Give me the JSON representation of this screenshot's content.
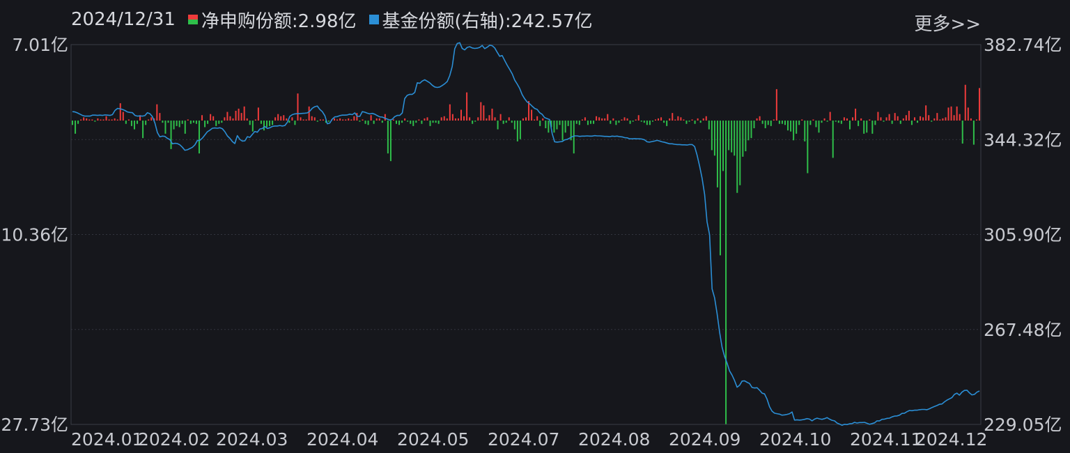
{
  "legend": {
    "date": "2024/12/31",
    "net_label": "净申购份额:",
    "net_value": "2.98亿",
    "share_label": "基金份额(右轴):",
    "share_value": "242.57亿"
  },
  "more_label": "更多>>",
  "chart_data": {
    "type": "bar+line",
    "left_axis": {
      "ticks": [
        "7.01亿",
        "10.36亿",
        "27.73亿"
      ],
      "top_value": 7.01,
      "zero_fraction": 0.2,
      "bottom_value": -27.73
    },
    "right_axis": {
      "ticks": [
        "382.74亿",
        "344.32亿",
        "305.90亿",
        "267.48亿",
        "229.05亿"
      ],
      "max": 382.74,
      "min": 229.05
    },
    "x_ticks": [
      "2024.01",
      "2024.02",
      "2024.03",
      "2024.04",
      "2024.05",
      "2024.07",
      "2024.08",
      "2024.09",
      "2024.10",
      "2024.11",
      "2024.12"
    ],
    "colors": {
      "positive": "#ef3b3b",
      "negative": "#2fbf4a",
      "line": "#2b8fd6"
    },
    "series": [
      {
        "name": "净申购份额",
        "unit": "亿",
        "values": [
          -0.4,
          -1.2,
          -0.3,
          0.1,
          0.3,
          0.2,
          0.1,
          0.1,
          -0.1,
          0.2,
          0.1,
          0.1,
          0.4,
          0.1,
          0.1,
          0.2,
          0.1,
          1.6,
          0.8,
          -0.3,
          0.1,
          -0.5,
          -0.8,
          -0.3,
          0.5,
          -1.6,
          -0.4,
          0.1,
          0.3,
          0.2,
          1.5,
          0.7,
          -0.2,
          -1.2,
          -0.2,
          -2.6,
          -0.8,
          -0.5,
          -0.6,
          -0.3,
          -1.2,
          0.1,
          -0.3,
          -0.2,
          -0.3,
          -3.0,
          0.5,
          -0.6,
          -0.3,
          0.6,
          0.4,
          -0.5,
          -0.3,
          -0.2,
          0.3,
          0.8,
          0.4,
          0.2,
          0.9,
          1.1,
          0.7,
          1.3,
          0.2,
          -0.4,
          -1.0,
          0.1,
          1.2,
          -0.3,
          -0.9,
          -0.6,
          -0.5,
          -0.4,
          0.3,
          0.6,
          0.4,
          0.5,
          0.2,
          -0.2,
          0.3,
          -0.4,
          2.5,
          0.3,
          0.1,
          0.1,
          1.3,
          0.4,
          0.3,
          -0.1,
          0.1,
          0.1,
          -0.2,
          -0.1,
          0.1,
          0.2,
          0.1,
          0.2,
          0.1,
          0.1,
          0.2,
          0.1,
          0.4,
          0.7,
          -0.1,
          0.1,
          -0.3,
          -0.4,
          0.5,
          -0.3,
          0.2,
          0.2,
          -0.2,
          0.6,
          -3.0,
          -3.7,
          0.1,
          -0.3,
          -0.4,
          -0.2,
          0.2,
          -0.1,
          -0.3,
          -0.5,
          -0.2,
          0.1,
          -0.3,
          0.2,
          0.3,
          -0.5,
          -0.2,
          -0.2,
          -0.3,
          0.3,
          0.4,
          0.2,
          1.5,
          0.6,
          0.2,
          0.2,
          1.0,
          0.4,
          2.6,
          0.3,
          -0.3,
          -0.1,
          0.3,
          1.7,
          1.4,
          0.2,
          0.5,
          1.1,
          0.3,
          -0.8,
          0.6,
          -0.3,
          -0.2,
          0.3,
          -0.2,
          -0.8,
          -1.9,
          -1.7,
          0.2,
          0.3,
          1.8,
          1.0,
          0.1,
          0.4,
          -0.5,
          0.2,
          -0.7,
          -1.1,
          -0.6,
          -1.1,
          -0.8,
          -0.4,
          -1.8,
          -1.1,
          -0.5,
          -1.8,
          -3.0,
          -0.3,
          -0.4,
          0.1,
          0.3,
          -0.4,
          -0.3,
          -0.3,
          0.4,
          0.3,
          0.2,
          0.2,
          0.6,
          -0.3,
          0.2,
          -0.4,
          -0.2,
          0.1,
          0.3,
          0.2,
          -0.3,
          -0.1,
          0.1,
          0.5,
          -0.1,
          -0.2,
          -0.4,
          -0.4,
          -0.1,
          0.1,
          0.2,
          0.3,
          -0.2,
          -0.5,
          0.2,
          0.7,
          0.1,
          0.4,
          0.3,
          0.1,
          -0.3,
          -0.1,
          0.1,
          -0.3,
          0.2,
          -0.2,
          0.2,
          0.4,
          -0.8,
          -2.7,
          -3.2,
          -6.1,
          -12.3,
          -4.6,
          -27.7,
          -2.7,
          -2.9,
          -3.2,
          -6.6,
          -5.9,
          -3.3,
          -2.8,
          -1.8,
          -1.6,
          -0.7,
          0.2,
          0.4,
          -0.3,
          -0.7,
          -0.4,
          -0.5,
          0.1,
          2.9,
          -0.3,
          -0.3,
          -0.4,
          -0.9,
          -1.0,
          -1.8,
          -1.2,
          -0.4,
          0.1,
          -1.9,
          -4.8,
          -0.4,
          0.1,
          -0.6,
          -1.1,
          -0.2,
          0.2,
          -0.1,
          0.8,
          -3.4,
          -0.1,
          -0.2,
          -0.3,
          0.3,
          0.2,
          -0.8,
          0.3,
          1.1,
          -0.5,
          0.2,
          -1.2,
          -1.1,
          0.1,
          -1.2,
          -0.4,
          0.8,
          0.3,
          -0.1,
          0.3,
          0.6,
          -0.3,
          0.7,
          0.4,
          -0.3,
          0.2,
          0.5,
          0.9,
          -0.4,
          0.3,
          -0.2,
          0.4,
          0.3,
          1.4,
          0.5,
          -0.1,
          0.2,
          0.7,
          0.1,
          0.2,
          0.3,
          1.2,
          1.3,
          0.5,
          1.3,
          0.6,
          -2.1,
          3.3,
          1.2,
          0.2,
          -2.2,
          0.1,
          3.0
        ]
      },
      {
        "name": "基金份额",
        "unit": "亿",
        "axis": "right",
        "x_range": [
          "2024-01-02",
          "2024-12-31"
        ],
        "values": [
          355.6,
          355.5,
          355.1,
          354.6,
          354.1,
          353.8,
          353.8,
          353.8,
          354.2,
          354.2,
          354.1,
          354.2,
          354.1,
          354.3,
          354.2,
          354.1,
          354.4,
          356.1,
          356.9,
          356.8,
          356.5,
          356.1,
          355.5,
          355.3,
          355.2,
          354.1,
          353.8,
          353.9,
          353.8,
          354.0,
          355.2,
          354.8,
          353.6,
          351.0,
          347.1,
          345.4,
          345.7,
          345.6,
          344.8,
          344.3,
          342.6,
          342.8,
          342.7,
          342.2,
          341.2,
          340.0,
          340.2,
          340.7,
          341.2,
          342.2,
          343.9,
          344.0,
          344.9,
          346.2,
          347.5,
          348.1,
          348.9,
          349.0,
          348.9,
          349.1,
          348.7,
          347.5,
          345.8,
          344.8,
          343.5,
          342.7,
          345.9,
          344.4,
          343.7,
          343.8,
          345.5,
          345.2,
          346.4,
          347.6,
          347.3,
          348.6,
          348.8,
          349.6,
          348.8,
          349.1,
          349.6,
          349.8,
          349.8,
          350.0,
          349.8,
          350.0,
          351.3,
          353.7,
          354.4,
          354.7,
          354.8,
          354.8,
          354.9,
          355.0,
          355.1,
          355.8,
          357.0,
          357.6,
          357.9,
          356.5,
          355.6,
          354.0,
          350.7,
          351.0,
          352.6,
          353.5,
          353.6,
          354.0,
          354.2,
          354.2,
          354.3,
          354.6,
          354.4,
          355.1,
          353.7,
          353.7,
          355.6,
          355.4,
          355.0,
          354.7,
          354.9,
          354.6,
          354.0,
          353.5,
          353.4,
          353.0,
          352.6,
          352.2,
          352.5,
          353.6,
          354.1,
          354.1,
          355.1,
          360.9,
          362.2,
          362.6,
          362.6,
          363.4,
          367.3,
          367.1,
          368.0,
          368.5,
          367.9,
          367.3,
          366.3,
          365.6,
          365.4,
          365.6,
          366.2,
          366.9,
          367.8,
          370.2,
          373.9,
          381.1,
          383.2,
          383.5,
          381.2,
          380.6,
          381.6,
          381.9,
          381.4,
          381.2,
          381.3,
          381.6,
          382.4,
          381.1,
          381.7,
          382.5,
          382.3,
          381.4,
          379.6,
          378.0,
          378.3,
          376.3,
          374.4,
          372.7,
          370.9,
          368.4,
          366.8,
          365.0,
          362.5,
          360.8,
          359.5,
          358.8,
          357.8,
          356.9,
          356.5,
          355.2,
          354.5,
          353.2,
          352.8,
          352.4,
          346.7,
          343.4,
          343.3,
          343.4,
          343.5,
          344.2,
          344.4,
          344.9,
          345.5,
          345.8,
          345.8,
          345.6,
          345.7,
          345.7,
          345.8,
          345.7,
          345.7,
          345.9,
          345.8,
          345.8,
          345.7,
          345.6,
          345.6,
          345.5,
          345.7,
          345.6,
          345.7,
          345.5,
          345.4,
          345.1,
          345.0,
          344.6,
          344.6,
          344.7,
          344.6,
          344.6,
          344.5,
          344.2,
          343.4,
          343.3,
          343.5,
          343.7,
          344.0,
          343.7,
          343.4,
          343.2,
          342.9,
          342.6,
          342.6,
          342.4,
          342.3,
          342.3,
          342.2,
          342.2,
          342.1,
          342.3,
          342.3,
          341.5,
          338.0,
          333.6,
          328.6,
          322.1,
          311.0,
          305.8,
          283.9,
          280.3,
          273.9,
          266.4,
          260.2,
          256.6,
          253.9,
          250.7,
          249.0,
          246.8,
          244.1,
          244.9,
          246.6,
          246.7,
          246.1,
          245.6,
          244.0,
          243.8,
          243.9,
          242.9,
          241.7,
          241.4,
          239.3,
          236.2,
          234.4,
          233.6,
          233.4,
          233.2,
          232.8,
          232.9,
          233.1,
          233.4,
          234.1,
          230.8,
          230.9,
          230.8,
          230.9,
          231.1,
          231.4,
          231.2,
          230.5,
          231.2,
          231.6,
          231.3,
          231.1,
          231.4,
          231.8,
          231.2,
          230.7,
          230.5,
          229.6,
          229.2,
          228.7,
          229.1,
          229.0,
          229.3,
          229.4,
          229.9,
          229.6,
          229.8,
          229.8,
          229.9,
          229.5,
          229.1,
          229.4,
          229.7,
          230.5,
          230.5,
          231.1,
          231.2,
          231.5,
          231.6,
          232.1,
          232.4,
          232.5,
          232.8,
          233.5,
          233.6,
          234.2,
          234.7,
          234.6,
          234.8,
          234.8,
          235.0,
          235.1,
          235.1,
          235.0,
          235.4,
          235.9,
          236.3,
          236.7,
          237.2,
          237.3,
          238.2,
          238.9,
          239.4,
          239.9,
          241.2,
          241.7,
          240.9,
          242.1,
          242.8,
          242.9,
          241.8,
          241.0,
          241.2,
          242.1,
          242.6
        ]
      }
    ],
    "grid": true
  }
}
